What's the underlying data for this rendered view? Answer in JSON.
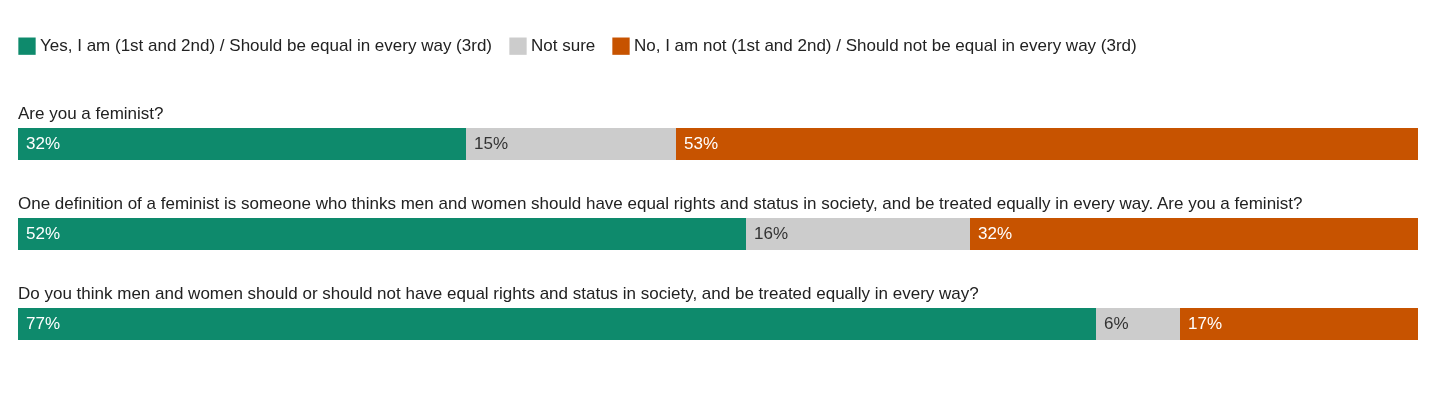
{
  "chart_data": {
    "type": "bar",
    "orientation": "horizontal",
    "stacked": true,
    "legend": "top left",
    "categories": [
      "Are you a feminist?",
      "One definition of a feminist is someone who thinks men and women should have equal rights and status in society, and be treated equally in every way. Are you a feminist?",
      "Do you think men and women should or should not have equal rights and status in society, and be treated equally in every way?"
    ],
    "series": [
      {
        "name": "Yes, I am (1st and 2nd) / Should be equal in every way (3rd)",
        "color": "#0e8a6c",
        "values": [
          32,
          52,
          77
        ],
        "value_labels": [
          "32%",
          "52%",
          "77%"
        ]
      },
      {
        "name": "Not sure",
        "color": "#cccccc",
        "values": [
          15,
          16,
          6
        ],
        "value_labels": [
          "15%",
          "16%",
          "6%"
        ]
      },
      {
        "name": "No, I am not (1st and 2nd) / Should not be equal in every way (3rd)",
        "color": "#c75300",
        "values": [
          53,
          32,
          17
        ],
        "value_labels": [
          "53%",
          "32%",
          "17%"
        ]
      }
    ]
  }
}
